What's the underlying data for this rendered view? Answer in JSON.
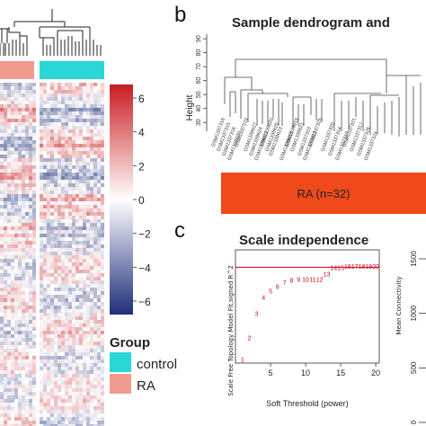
{
  "panel_b_letter": "b",
  "panel_c_letter": "c",
  "chart_data": [
    {
      "type": "heatmap",
      "colorbar": {
        "ticks": [
          6,
          4,
          2,
          0,
          -2,
          -4,
          -6
        ],
        "low_color": "#1f2d7a",
        "mid_color": "#ffffff",
        "high_color": "#c81d22"
      },
      "legend": {
        "title": "Group",
        "entries": [
          {
            "label": "control",
            "color": "#2ad6d6"
          },
          {
            "label": "RA",
            "color": "#f29a8f"
          }
        ]
      },
      "group_bar": [
        {
          "group": "RA",
          "color": "#f29a8f"
        },
        {
          "group": "control",
          "color": "#2ad6d6"
        }
      ]
    },
    {
      "type": "dendrogram",
      "title": "Sample dendrogram and",
      "ylabel": "Height",
      "yticks": [
        90,
        80,
        70,
        60,
        50,
        40,
        30
      ],
      "ylim": [
        25,
        92
      ],
      "leaves": [
        "GSM1337318",
        "GSM1337315",
        "GSM1337316",
        "GSM1339820",
        "GSM1337223",
        "GSM1339627",
        "GSM1339624",
        "GSM1339622",
        "GSM1339620",
        "GSM1339625",
        "GSM1339623",
        "GSM1339618",
        "GSM1339619",
        "GSM1339621",
        "GSM1337323",
        "GSM1337322",
        "GSM1337325",
        "GSM1337320",
        "GSM1337314",
        "GSM1337319",
        "GSM1337321",
        "GSM1337317",
        "GSM1337326",
        "GSM1337324"
      ],
      "group_band": {
        "label": "RA (n=32)",
        "color": "#f04a1c"
      }
    },
    {
      "type": "scatter",
      "title": "Scale independence",
      "xlabel": "Soft Threshold (power)",
      "ylabel": "Scale Free Topology Model Fit,signed R^2",
      "xticks": [
        5,
        10,
        15,
        20
      ],
      "xlim": [
        0,
        20.5
      ],
      "ylim": [
        0.0,
        1.0
      ],
      "cutoff_line": 0.9,
      "points": [
        {
          "label": "1",
          "x": 1,
          "y": 0.04
        },
        {
          "label": "2",
          "x": 2,
          "y": 0.24
        },
        {
          "label": "3",
          "x": 3,
          "y": 0.47
        },
        {
          "label": "4",
          "x": 4,
          "y": 0.62
        },
        {
          "label": "5",
          "x": 5,
          "y": 0.68
        },
        {
          "label": "6",
          "x": 6,
          "y": 0.72
        },
        {
          "label": "7",
          "x": 7,
          "y": 0.76
        },
        {
          "label": "8",
          "x": 8,
          "y": 0.78
        },
        {
          "label": "9",
          "x": 9,
          "y": 0.79
        },
        {
          "label": "10",
          "x": 10,
          "y": 0.79
        },
        {
          "label": "11",
          "x": 11,
          "y": 0.79
        },
        {
          "label": "12",
          "x": 12,
          "y": 0.79
        },
        {
          "label": "13",
          "x": 13,
          "y": 0.84
        },
        {
          "label": "14",
          "x": 14,
          "y": 0.9
        },
        {
          "label": "15",
          "x": 15,
          "y": 0.9
        },
        {
          "label": "16",
          "x": 16,
          "y": 0.91
        },
        {
          "label": "17",
          "x": 17,
          "y": 0.91
        },
        {
          "label": "18",
          "x": 18,
          "y": 0.91
        },
        {
          "label": "19",
          "x": 19,
          "y": 0.91
        },
        {
          "label": "20",
          "x": 20,
          "y": 0.91
        }
      ],
      "point_color": "#d0021b"
    },
    {
      "type": "scatter",
      "ylabel": "Mean Connectivity",
      "yticks": [
        1500,
        1000,
        500,
        0
      ]
    }
  ]
}
